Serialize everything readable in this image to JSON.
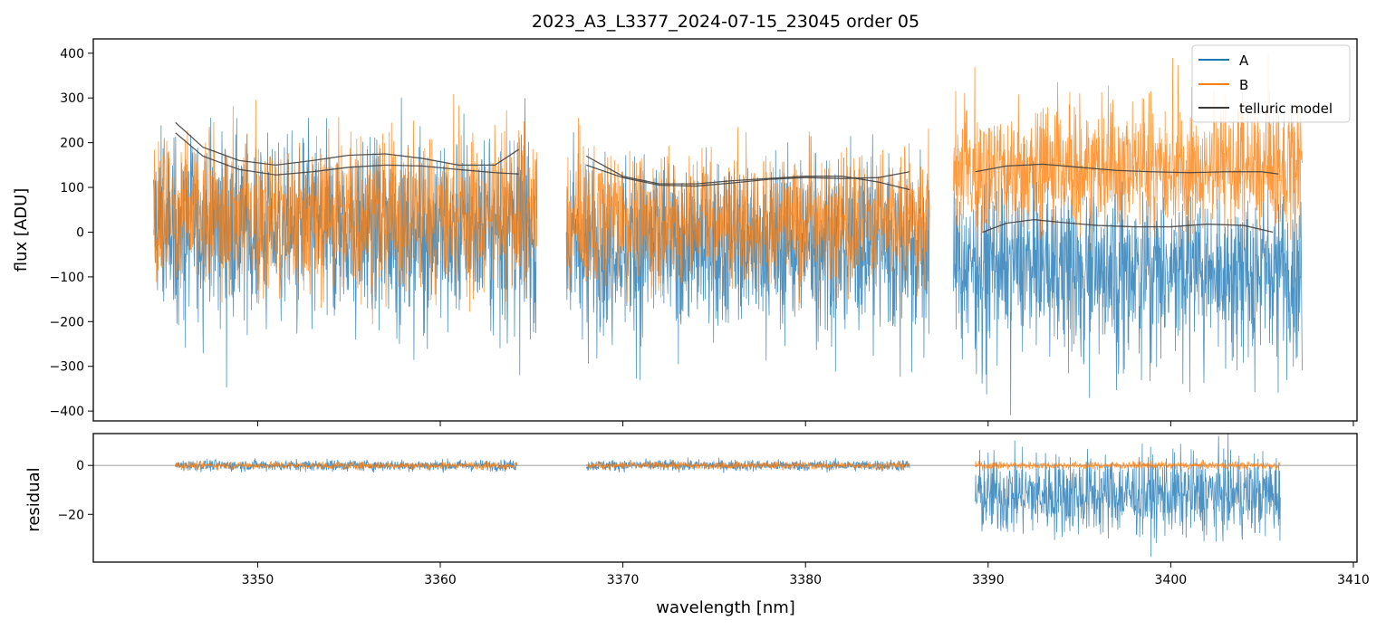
{
  "figure": {
    "title": "2023_A3_L3377_2024-07-15_23045  order 05",
    "xlabel": "wavelength [nm]"
  },
  "colors": {
    "A": "#1f77b4",
    "B": "#ff7f0e",
    "model": "#3a3a3a",
    "zero_line": "#808080"
  },
  "chart_data": [
    {
      "type": "line",
      "panel": "flux",
      "ylabel": "flux [ADU]",
      "xlim": [
        3341,
        3410.2
      ],
      "ylim": [
        -422,
        432
      ],
      "yticks": [
        400,
        300,
        200,
        100,
        0,
        -100,
        -200,
        -300,
        -400
      ],
      "ytick_labels": [
        "400",
        "300",
        "200",
        "100",
        "0",
        "−100",
        "−200",
        "−300",
        "−400"
      ],
      "xticks": [
        3350,
        3360,
        3370,
        3380,
        3390,
        3400,
        3410
      ],
      "legend": {
        "placement": "upper right",
        "entries": [
          "A",
          "B",
          "telluric model"
        ]
      },
      "segments": [
        {
          "x_range": [
            3344.3,
            3365.3
          ],
          "A": {
            "center": 20,
            "spread": 250,
            "skew": -60
          },
          "B": {
            "center": 30,
            "spread": 230,
            "skew": 40
          }
        },
        {
          "x_range": [
            3366.9,
            3386.8
          ],
          "A": {
            "center": -10,
            "spread": 240,
            "skew": -80
          },
          "B": {
            "center": 20,
            "spread": 200,
            "skew": 30
          }
        },
        {
          "x_range": [
            3388.1,
            3407.2
          ],
          "A": {
            "center": -60,
            "spread": 200,
            "skew": -100
          },
          "B": {
            "center": 130,
            "spread": 170,
            "skew": 60
          }
        }
      ],
      "telluric_model": [
        {
          "x": [
            3345.5,
            3347,
            3349,
            3351,
            3353,
            3355,
            3357,
            3359,
            3361,
            3363,
            3364.3
          ],
          "y": [
            245,
            190,
            160,
            150,
            160,
            172,
            175,
            165,
            150,
            150,
            185
          ]
        },
        {
          "x": [
            3345.5,
            3347,
            3349,
            3351,
            3353,
            3355,
            3357,
            3359,
            3361,
            3363,
            3364.3
          ],
          "y": [
            222,
            170,
            140,
            128,
            135,
            145,
            150,
            148,
            140,
            133,
            130
          ]
        },
        {
          "x": [
            3368,
            3370,
            3372,
            3374,
            3376,
            3378,
            3380,
            3382,
            3384,
            3385.7
          ],
          "y": [
            170,
            125,
            108,
            108,
            115,
            120,
            125,
            125,
            112,
            95
          ]
        },
        {
          "x": [
            3368,
            3370,
            3372,
            3374,
            3376,
            3378,
            3380,
            3382,
            3384,
            3385.7
          ],
          "y": [
            150,
            122,
            105,
            103,
            110,
            118,
            122,
            120,
            122,
            135
          ]
        },
        {
          "x": [
            3389.3,
            3391,
            3393,
            3395,
            3397,
            3399,
            3401,
            3403,
            3405,
            3405.9
          ],
          "y": [
            135,
            148,
            152,
            145,
            138,
            135,
            133,
            135,
            135,
            130
          ]
        },
        {
          "x": [
            3389.7,
            3391,
            3392.5,
            3394,
            3396,
            3398,
            3400,
            3402,
            3404,
            3405.6
          ],
          "y": [
            0,
            20,
            28,
            22,
            15,
            12,
            12,
            18,
            15,
            0
          ]
        }
      ]
    },
    {
      "type": "line",
      "panel": "residual",
      "ylabel": "residual",
      "xlabel": "wavelength [nm]",
      "xlim": [
        3341,
        3410.2
      ],
      "ylim": [
        -39.5,
        13
      ],
      "yticks": [
        0,
        -20
      ],
      "ytick_labels": [
        "0",
        "−20"
      ],
      "xticks": [
        3350,
        3360,
        3370,
        3380,
        3390,
        3400,
        3410
      ],
      "xtick_labels": [
        "3350",
        "3360",
        "3370",
        "3380",
        "3390",
        "3400",
        "3410"
      ],
      "zero_line": 0,
      "segments": [
        {
          "x_range": [
            3345.5,
            3364.2
          ],
          "A": {
            "center": 0,
            "spread": 3
          },
          "B": {
            "center": 0,
            "spread": 2
          }
        },
        {
          "x_range": [
            3368,
            3385.7
          ],
          "A": {
            "center": 0,
            "spread": 3
          },
          "B": {
            "center": 0,
            "spread": 2
          }
        },
        {
          "x_range": [
            3389.3,
            3406
          ],
          "A": {
            "center": -12,
            "spread": 22
          },
          "B": {
            "center": 0,
            "spread": 2
          }
        }
      ]
    }
  ]
}
